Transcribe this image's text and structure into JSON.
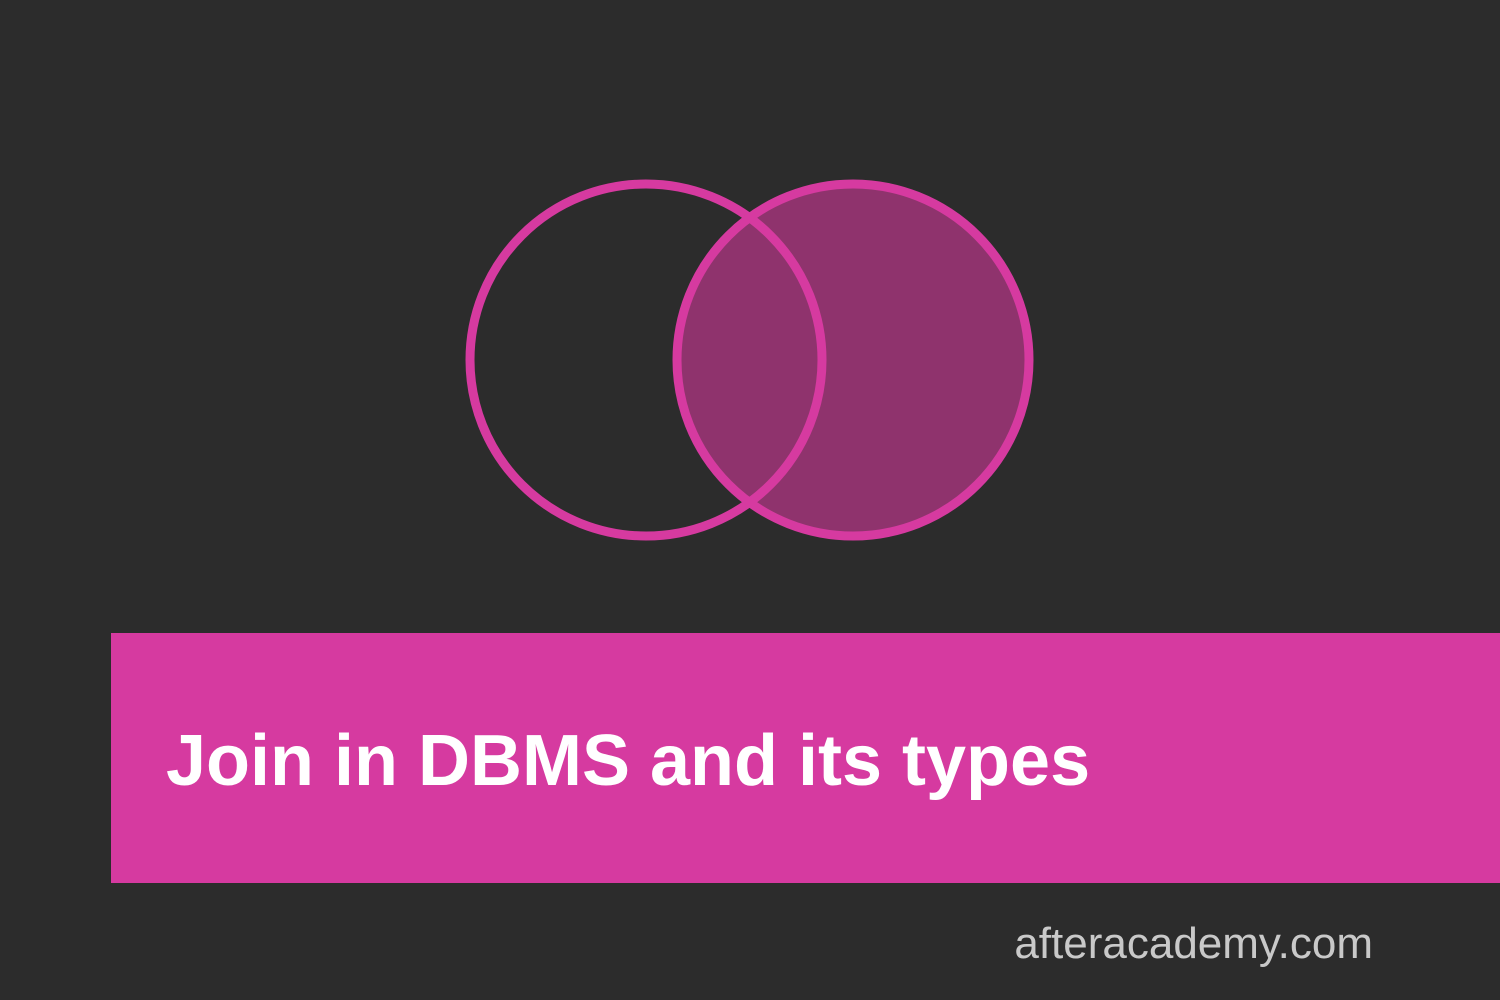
{
  "colors": {
    "background": "#2c2c2c",
    "accent": "#d63aa0",
    "fill": "#8f336d",
    "title_text": "#ffffff",
    "url_text": "#c9c9c9"
  },
  "diagram": {
    "type": "venn",
    "circles": [
      {
        "set": "left",
        "highlighted": false
      },
      {
        "set": "right",
        "highlighted": true
      }
    ],
    "highlighted_region": "right-circle-including-intersection"
  },
  "banner": {
    "title": "Join in DBMS and its types"
  },
  "footer": {
    "site": "afteracademy.com"
  }
}
